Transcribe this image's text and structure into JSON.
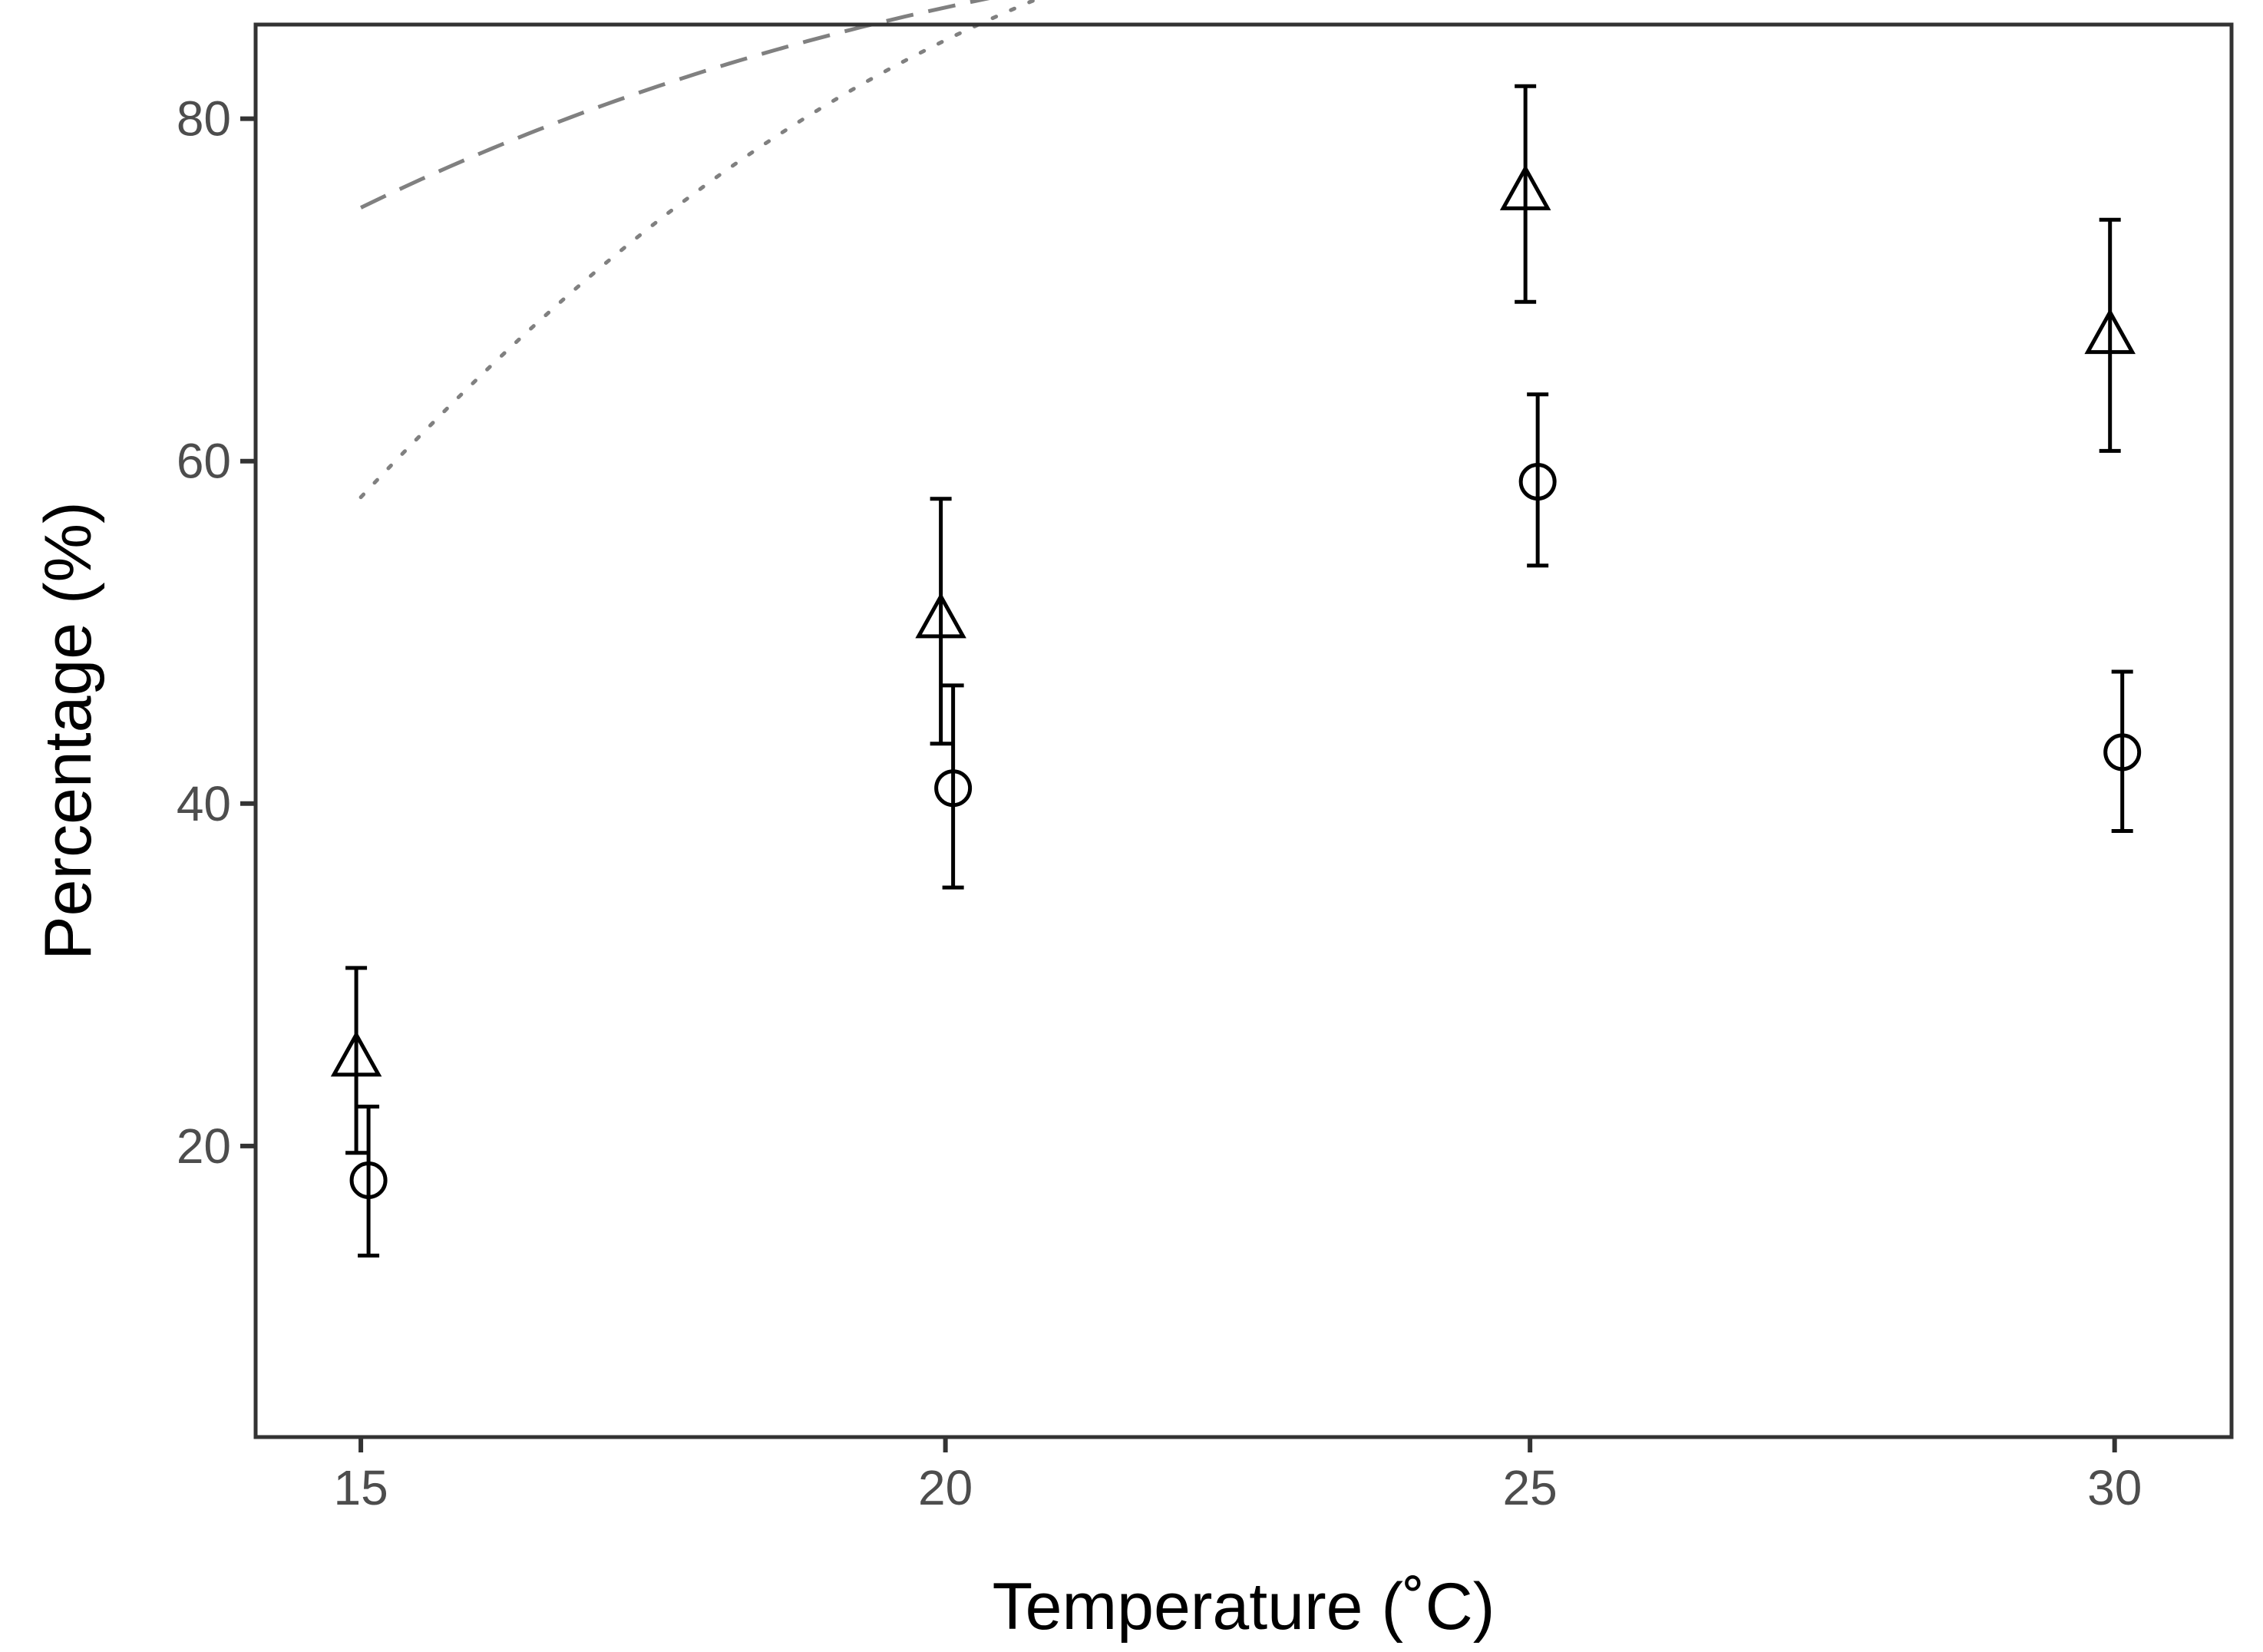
{
  "chart_data": {
    "type": "scatter",
    "title": "",
    "xlabel": "Temperature (˚C)",
    "ylabel": "Percentage (%)",
    "xlim": [
      14.1,
      31.0
    ],
    "ylim": [
      3.0,
      85.5
    ],
    "x_ticks": [
      15,
      20,
      25,
      30
    ],
    "y_ticks": [
      20,
      40,
      60,
      80
    ],
    "grid": false,
    "legend": "none",
    "series": [
      {
        "name": "triangles",
        "marker": "triangle-open",
        "x": [
          15,
          20,
          25,
          30
        ],
        "y": [
          25.2,
          50.8,
          75.8,
          67.4
        ],
        "err_low": [
          19.6,
          43.5,
          69.3,
          60.6
        ],
        "err_high": [
          30.4,
          57.8,
          81.9,
          74.1
        ],
        "fit": {
          "style": "dashed",
          "color": "#808080",
          "coef": [
            -1.9845,
            0.2041,
            0.002,
            -0.00013
          ]
        }
      },
      {
        "name": "circles",
        "marker": "circle-open",
        "x": [
          15,
          20,
          25,
          30
        ],
        "y": [
          18.0,
          40.9,
          58.8,
          43.0
        ],
        "err_low": [
          13.6,
          35.1,
          53.9,
          38.4
        ],
        "err_high": [
          22.3,
          46.9,
          63.9,
          47.7
        ],
        "fit": {
          "style": "dotted",
          "color": "#808080",
          "coef": [
            -4.8535,
            0.3838,
            -0.002,
            -4e-05
          ]
        }
      }
    ],
    "fit_note": "fit curves are drawn as y = 100/(1+exp(-(c0 + c1*x + c2*x^2 + c3*x^3)))"
  }
}
